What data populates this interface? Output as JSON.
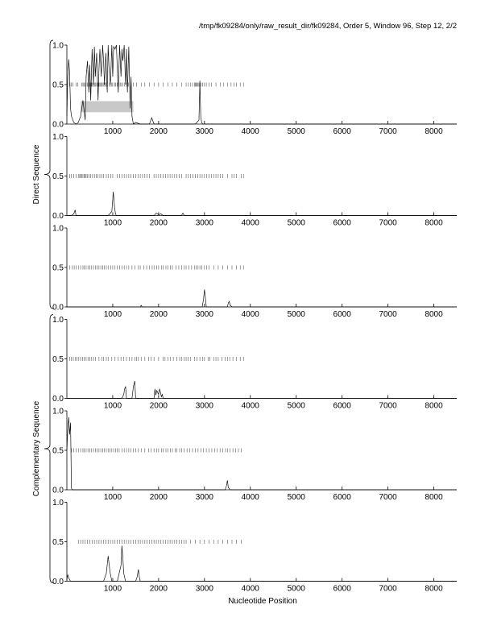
{
  "header_text": "/tmp/fk09284/only/raw_result_dir/fk09284, Order 5, Window 96, Step 12, 2/2",
  "xlabel": "Nucleotide Position",
  "group_labels": [
    "Direct Sequence",
    "Complementary Sequence"
  ],
  "chart_data": {
    "type": "line",
    "xlabel": "Nucleotide Position",
    "xlim": [
      0,
      8500
    ],
    "ylim": [
      0,
      1.0
    ],
    "x_ticks": [
      1000,
      2000,
      3000,
      4000,
      5000,
      6000,
      7000,
      8000
    ],
    "y_ticks": [
      0.0,
      0.5,
      1.0
    ],
    "y_tick_labels": [
      "0.0",
      "0.5",
      "1.0"
    ],
    "grid": false,
    "panels": [
      {
        "group": "Direct Sequence",
        "highlight": {
          "x": [
            300,
            1450
          ],
          "y": [
            0.15,
            0.29
          ]
        },
        "marks": [
          60,
          100,
          130,
          200,
          240,
          320,
          350,
          370,
          390,
          420,
          450,
          470,
          500,
          520,
          540,
          560,
          580,
          600,
          620,
          650,
          680,
          700,
          720,
          740,
          760,
          790,
          810,
          840,
          860,
          880,
          920,
          950,
          980,
          1000,
          1040,
          1060,
          1100,
          1120,
          1160,
          1180,
          1220,
          1260,
          1300,
          1340,
          1400,
          1450,
          1520,
          1620,
          1700,
          1800,
          1900,
          2000,
          2100,
          2200,
          2300,
          2400,
          2500,
          2600,
          2650,
          2700,
          2740,
          2780,
          2800,
          2820,
          2840,
          2860,
          2880,
          2900,
          2920,
          2960,
          3000,
          3040,
          3100,
          3150,
          3250,
          3350,
          3420,
          3500,
          3580,
          3640,
          3700,
          3780,
          3850
        ],
        "series": [
          {
            "x": [
              0,
              20,
              40,
              60,
              80,
              100,
              150,
              200,
              250,
              300,
              350,
              400,
              420,
              450,
              480,
              500,
              520,
              550,
              580,
              600,
              620,
              650,
              680,
              700,
              720,
              750,
              780,
              800,
              820,
              850,
              880,
              900,
              920,
              950,
              980,
              1000,
              1020,
              1050,
              1080,
              1100,
              1120,
              1150,
              1180,
              1200,
              1220,
              1250,
              1280,
              1300,
              1320,
              1350,
              1380,
              1400,
              1420,
              1450,
              1500,
              1600,
              1800,
              1850,
              1900,
              2000,
              2500,
              2800,
              2880,
              2900,
              2910,
              2920,
              2940,
              2960,
              3000,
              3500,
              4000,
              8500
            ],
            "y": [
              0.1,
              0.6,
              0.82,
              0.65,
              0.2,
              0.1,
              0.02,
              0.0,
              0.02,
              0.1,
              0.3,
              0.05,
              0.6,
              0.8,
              0.4,
              0.75,
              0.3,
              0.95,
              0.5,
              0.98,
              0.6,
              0.9,
              0.3,
              0.7,
              0.95,
              0.6,
              1.0,
              0.8,
              0.5,
              0.9,
              0.4,
              1.0,
              0.7,
              0.5,
              1.0,
              0.6,
              0.98,
              0.95,
              1.0,
              0.7,
              0.4,
              1.0,
              0.6,
              0.95,
              0.8,
              1.0,
              0.5,
              0.95,
              0.4,
              0.98,
              0.2,
              0.6,
              0.1,
              0.0,
              0.02,
              0.0,
              0.0,
              0.08,
              0.0,
              0.0,
              0.0,
              0.0,
              0.05,
              0.55,
              0.3,
              0.08,
              0.02,
              0.0,
              0.0,
              0.0,
              0.0,
              0.0
            ]
          }
        ]
      },
      {
        "group": "Direct Sequence",
        "marks": [
          60,
          100,
          150,
          200,
          250,
          280,
          300,
          320,
          350,
          380,
          400,
          420,
          450,
          480,
          520,
          560,
          600,
          640,
          680,
          720,
          760,
          800,
          860,
          900,
          960,
          1000,
          1100,
          1150,
          1200,
          1250,
          1300,
          1350,
          1400,
          1450,
          1500,
          1550,
          1600,
          1650,
          1700,
          1750,
          1800,
          1900,
          1950,
          2000,
          2050,
          2100,
          2150,
          2200,
          2250,
          2300,
          2350,
          2400,
          2450,
          2500,
          2600,
          2650,
          2700,
          2750,
          2800,
          2850,
          2900,
          2950,
          3000,
          3050,
          3100,
          3150,
          3200,
          3250,
          3300,
          3350,
          3400,
          3500,
          3600,
          3650,
          3700,
          3800,
          3850
        ],
        "series": [
          {
            "x": [
              0,
              100,
              150,
              180,
              200,
              250,
              500,
              900,
              980,
              1000,
              1010,
              1020,
              1040,
              1060,
              1080,
              1100,
              1300,
              1500,
              1900,
              1950,
              2000,
              2050,
              2100,
              2200,
              2500,
              2530,
              2560,
              2600,
              3000,
              8500
            ],
            "y": [
              0.0,
              0.0,
              0.02,
              0.07,
              0.0,
              0.0,
              0.0,
              0.0,
              0.05,
              0.2,
              0.3,
              0.25,
              0.1,
              0.02,
              0.0,
              0.0,
              0.0,
              0.0,
              0.0,
              0.03,
              0.01,
              0.02,
              0.0,
              0.0,
              0.0,
              0.03,
              0.0,
              0.0,
              0.0,
              0.0
            ]
          }
        ]
      },
      {
        "group": "Direct Sequence",
        "marks": [
          60,
          120,
          160,
          200,
          250,
          300,
          350,
          380,
          420,
          460,
          500,
          540,
          580,
          620,
          660,
          700,
          740,
          780,
          820,
          860,
          900,
          960,
          1000,
          1050,
          1100,
          1150,
          1200,
          1250,
          1300,
          1350,
          1420,
          1480,
          1560,
          1600,
          1680,
          1740,
          1800,
          1860,
          1900,
          1960,
          2000,
          2060,
          2100,
          2160,
          2200,
          2260,
          2300,
          2380,
          2440,
          2500,
          2560,
          2600,
          2660,
          2720,
          2780,
          2820,
          2860,
          2900,
          2940,
          3000,
          3050,
          3100,
          3200,
          3300,
          3400,
          3500,
          3600,
          3700,
          3780,
          3850
        ],
        "series": [
          {
            "x": [
              0,
              1500,
              1600,
              1620,
              1640,
              1700,
              2800,
              2950,
              2980,
              3000,
              3020,
              3040,
              3080,
              3500,
              3520,
              3540,
              3560,
              3600,
              8500
            ],
            "y": [
              0.0,
              0.0,
              0.0,
              0.02,
              0.0,
              0.0,
              0.0,
              0.0,
              0.1,
              0.22,
              0.12,
              0.0,
              0.0,
              0.0,
              0.05,
              0.07,
              0.02,
              0.0,
              0.0
            ]
          }
        ]
      },
      {
        "group": "Complementary Sequence",
        "marks": [
          60,
          100,
          140,
          180,
          220,
          260,
          300,
          340,
          380,
          420,
          460,
          500,
          540,
          580,
          620,
          700,
          760,
          800,
          860,
          900,
          980,
          1050,
          1120,
          1180,
          1240,
          1300,
          1360,
          1420,
          1480,
          1520,
          1560,
          1620,
          1700,
          1780,
          1840,
          1900,
          2000,
          2100,
          2140,
          2200,
          2260,
          2320,
          2400,
          2460,
          2500,
          2560,
          2600,
          2640,
          2700,
          2780,
          2840,
          2900,
          2960,
          3000,
          3080,
          3120,
          3200,
          3250,
          3300,
          3380,
          3450,
          3500,
          3550,
          3620,
          3700,
          3780,
          3850
        ],
        "series": [
          {
            "x": [
              0,
              1200,
              1240,
              1260,
              1280,
              1300,
              1420,
              1450,
              1480,
              1500,
              1700,
              1900,
              1920,
              1940,
              1960,
              2000,
              2020,
              2040,
              2060,
              2080,
              2100,
              2500,
              8500
            ],
            "y": [
              0.0,
              0.0,
              0.05,
              0.12,
              0.15,
              0.0,
              0.0,
              0.15,
              0.22,
              0.0,
              0.0,
              0.0,
              0.12,
              0.04,
              0.1,
              0.05,
              0.12,
              0.08,
              0.02,
              0.05,
              0.0,
              0.0,
              0.0
            ]
          }
        ]
      },
      {
        "group": "Complementary Sequence",
        "marks": [
          100,
          150,
          200,
          250,
          300,
          350,
          380,
          420,
          460,
          500,
          540,
          580,
          620,
          660,
          700,
          740,
          780,
          820,
          860,
          900,
          940,
          980,
          1020,
          1060,
          1100,
          1140,
          1200,
          1250,
          1300,
          1350,
          1400,
          1450,
          1500,
          1560,
          1620,
          1700,
          1780,
          1840,
          1900,
          1960,
          2000,
          2060,
          2100,
          2160,
          2200,
          2260,
          2300,
          2360,
          2400,
          2460,
          2500,
          2560,
          2620,
          2680,
          2740,
          2800,
          2860,
          2920,
          2980,
          3040,
          3100,
          3160,
          3220,
          3280,
          3340,
          3400,
          3460,
          3500,
          3560,
          3620,
          3680,
          3740,
          3800
        ],
        "series": [
          {
            "x": [
              0,
              20,
              40,
              60,
              80,
              100,
              120,
              3400,
              3450,
              3480,
              3500,
              3520,
              3560,
              8500
            ],
            "y": [
              0.5,
              0.75,
              0.92,
              0.7,
              0.85,
              0.02,
              0.0,
              0.0,
              0.0,
              0.05,
              0.12,
              0.03,
              0.0,
              0.0
            ]
          }
        ]
      },
      {
        "group": "Complementary Sequence",
        "marks": [
          250,
          300,
          350,
          400,
          450,
          500,
          550,
          600,
          650,
          700,
          750,
          800,
          850,
          900,
          950,
          1000,
          1050,
          1100,
          1150,
          1200,
          1250,
          1300,
          1350,
          1400,
          1450,
          1500,
          1550,
          1600,
          1650,
          1700,
          1750,
          1800,
          1850,
          1900,
          1950,
          2000,
          2050,
          2100,
          2150,
          2200,
          2250,
          2300,
          2350,
          2400,
          2450,
          2500,
          2550,
          2600,
          2700,
          2800,
          2900,
          3000,
          3100,
          3200,
          3300,
          3400,
          3500,
          3600,
          3700,
          3800
        ],
        "series": [
          {
            "x": [
              0,
              20,
              50,
              80,
              300,
              800,
              860,
              900,
              940,
              980,
              1000,
              1100,
              1180,
              1200,
              1220,
              1240,
              1280,
              1300,
              1500,
              1530,
              1560,
              1580,
              1600,
              1700,
              8500
            ],
            "y": [
              0.02,
              0.08,
              0.03,
              0.0,
              0.0,
              0.0,
              0.1,
              0.32,
              0.12,
              0.0,
              0.0,
              0.0,
              0.2,
              0.45,
              0.3,
              0.1,
              0.0,
              0.0,
              0.0,
              0.05,
              0.15,
              0.05,
              0.0,
              0.0,
              0.0
            ]
          }
        ]
      }
    ]
  }
}
